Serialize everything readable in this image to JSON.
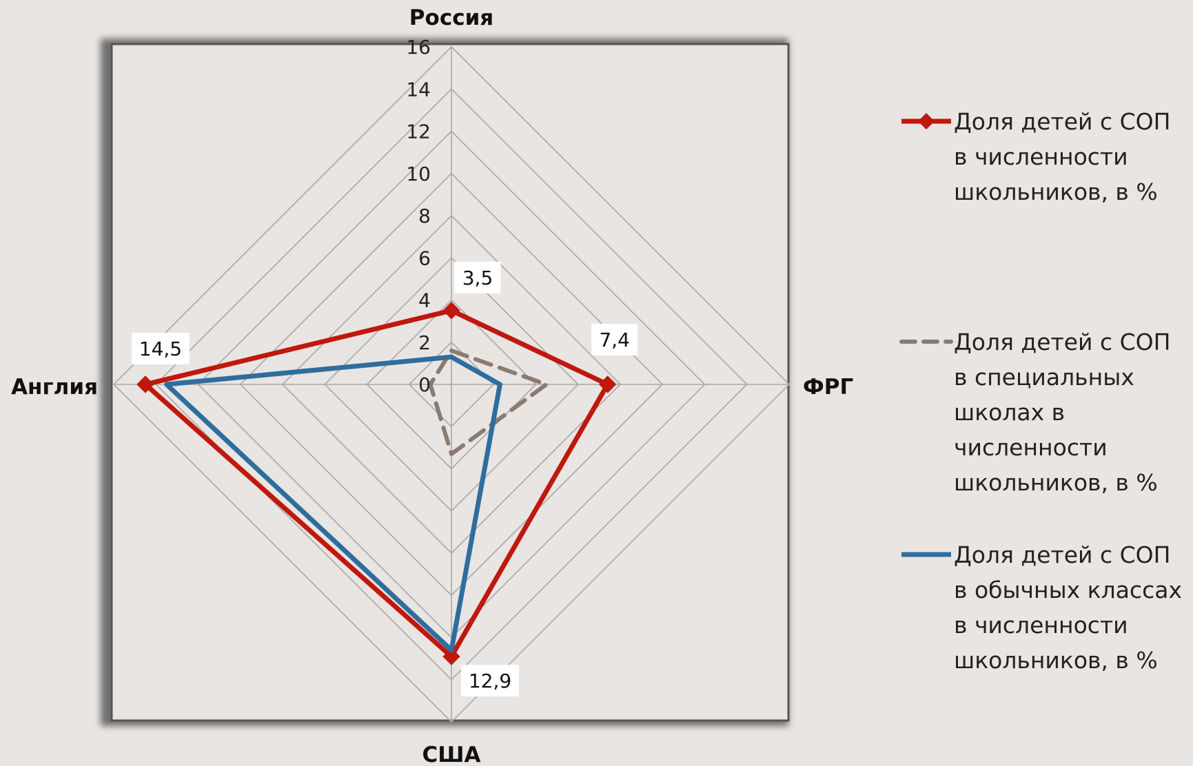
{
  "chart_data": {
    "type": "radar",
    "categories": [
      "Россия",
      "ФРГ",
      "США",
      "Англия"
    ],
    "rlim": [
      0,
      16
    ],
    "ticks": [
      "0",
      "2",
      "4",
      "6",
      "8",
      "10",
      "12",
      "14",
      "16"
    ],
    "grid": true,
    "legend_position": "right",
    "series": [
      {
        "name": "Доля детей с СОП в численности школьников, в %",
        "name_lines": [
          "Доля детей с СОП",
          "в численности",
          "школьников, в %"
        ],
        "values": [
          3.5,
          7.4,
          12.9,
          14.5
        ],
        "data_labels": [
          "3,5",
          "7,4",
          "12,9",
          "14,5"
        ],
        "color": "#c0180c",
        "style": "solid",
        "marker": "diamond"
      },
      {
        "name": "Доля детей с СОП в специальных школах в численности школьников, в %",
        "name_lines": [
          "Доля детей с СОП",
          "в специальных",
          "школах в",
          "численности",
          "школьников, в %"
        ],
        "values": [
          1.6,
          4.5,
          3.3,
          1.0
        ],
        "color": "#8c7b70",
        "style": "dashed",
        "marker": "none"
      },
      {
        "name": "Доля детей с СОП в обычных классах в численности школьников, в %",
        "name_lines": [
          "Доля детей с СОП",
          "в обычных классах",
          "в численности",
          "школьников, в %"
        ],
        "values": [
          1.3,
          2.3,
          12.6,
          13.5
        ],
        "color": "#2e6e9e",
        "style": "solid",
        "marker": "none"
      }
    ]
  }
}
